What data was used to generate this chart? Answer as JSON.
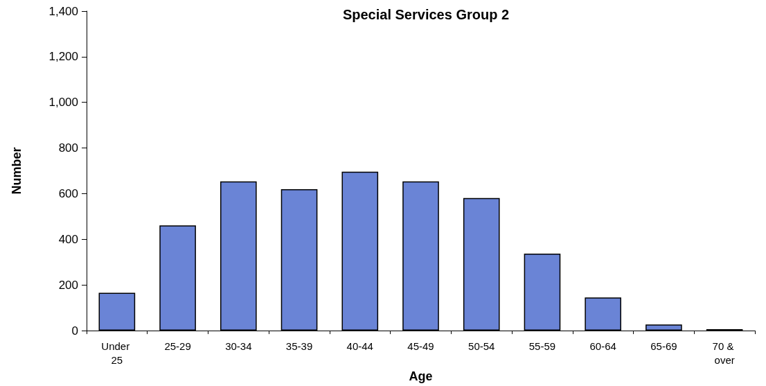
{
  "chart_data": {
    "type": "bar",
    "title": "Special Services Group 2",
    "xlabel": "Age",
    "ylabel": "Number",
    "categories": [
      "Under 25",
      "25-29",
      "30-34",
      "35-39",
      "40-44",
      "45-49",
      "50-54",
      "55-59",
      "60-64",
      "65-69",
      "70 & over"
    ],
    "values": [
      166,
      461,
      654,
      620,
      696,
      654,
      581,
      337,
      145,
      27,
      6
    ],
    "color": "#6a84d6",
    "ylim": [
      0,
      1400
    ],
    "yticks": [
      0,
      200,
      400,
      600,
      800,
      {
        "value": 1000,
        "label": "1,000"
      },
      {
        "value": 1200,
        "label": "1,200"
      },
      {
        "value": 1400,
        "label": "1,400"
      }
    ],
    "grid": false
  }
}
